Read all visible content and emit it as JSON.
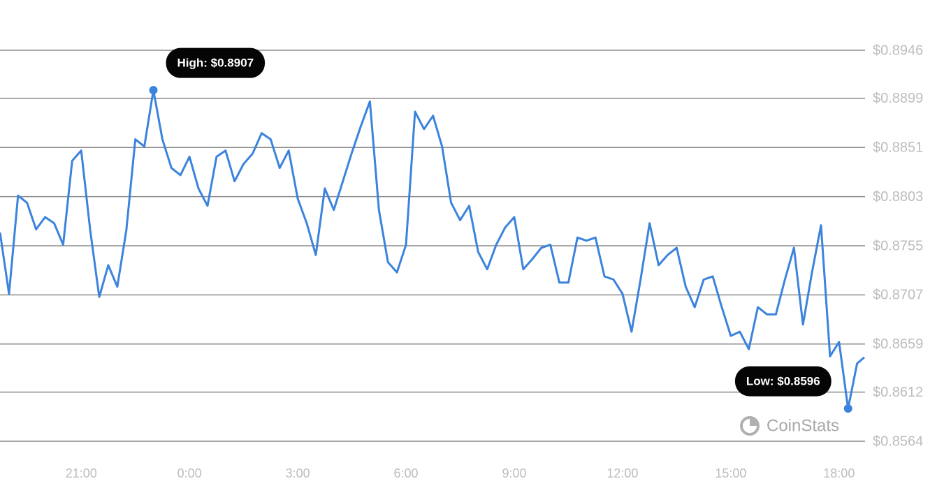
{
  "chart_data": {
    "type": "line",
    "watermark": "CoinStats",
    "high_label": "High: $0.8907",
    "low_label": "Low: $0.8596",
    "color": "#3b83dd",
    "grid": true,
    "xlim": [
      18.75,
      42.72
    ],
    "ylim": [
      0.8564,
      0.8946
    ],
    "xticks": [
      {
        "value": 21,
        "label": "21:00"
      },
      {
        "value": 24,
        "label": "0:00"
      },
      {
        "value": 27,
        "label": "3:00"
      },
      {
        "value": 30,
        "label": "6:00"
      },
      {
        "value": 33,
        "label": "9:00"
      },
      {
        "value": 36,
        "label": "12:00"
      },
      {
        "value": 39,
        "label": "15:00"
      },
      {
        "value": 42,
        "label": "18:00"
      }
    ],
    "yticks": [
      {
        "value": 0.8564,
        "label": "$0.8564"
      },
      {
        "value": 0.8612,
        "label": "$0.8612"
      },
      {
        "value": 0.8659,
        "label": "$0.8659"
      },
      {
        "value": 0.8707,
        "label": "$0.8707"
      },
      {
        "value": 0.8755,
        "label": "$0.8755"
      },
      {
        "value": 0.8803,
        "label": "$0.8803"
      },
      {
        "value": 0.8851,
        "label": "$0.8851"
      },
      {
        "value": 0.8899,
        "label": "$0.8899"
      },
      {
        "value": 0.8946,
        "label": "$0.8946"
      }
    ],
    "x": [
      18.75,
      19,
      19.25,
      19.5,
      19.75,
      20,
      20.25,
      20.5,
      20.75,
      21,
      21.25,
      21.5,
      21.75,
      22,
      22.25,
      22.5,
      22.75,
      23,
      23.25,
      23.5,
      23.75,
      24,
      24.25,
      24.5,
      24.75,
      25,
      25.25,
      25.5,
      25.75,
      26,
      26.25,
      26.5,
      26.75,
      27,
      27.25,
      27.5,
      27.75,
      28,
      28.25,
      28.5,
      28.75,
      29,
      29.25,
      29.5,
      29.75,
      30,
      30.25,
      30.5,
      30.75,
      31,
      31.25,
      31.5,
      31.75,
      32,
      32.25,
      32.5,
      32.75,
      33,
      33.25,
      33.5,
      33.75,
      34,
      34.25,
      34.5,
      34.75,
      35,
      35.25,
      35.5,
      35.75,
      36,
      36.25,
      36.5,
      36.75,
      37,
      37.25,
      37.5,
      37.75,
      38,
      38.25,
      38.5,
      38.75,
      39,
      39.25,
      39.5,
      39.75,
      40,
      40.25,
      40.5,
      40.75,
      41,
      41.25,
      41.5,
      41.75,
      42,
      42.25,
      42.5,
      42.7
    ],
    "values": [
      0.8768,
      0.8708,
      0.8804,
      0.8797,
      0.8771,
      0.8783,
      0.8777,
      0.8756,
      0.8838,
      0.8848,
      0.877,
      0.8705,
      0.8736,
      0.8715,
      0.877,
      0.8859,
      0.8852,
      0.8907,
      0.8859,
      0.8831,
      0.8824,
      0.8842,
      0.8811,
      0.8794,
      0.8842,
      0.8848,
      0.8818,
      0.8835,
      0.8845,
      0.8865,
      0.8859,
      0.8831,
      0.8848,
      0.8801,
      0.8777,
      0.8746,
      0.8811,
      0.879,
      0.8818,
      0.8846,
      0.8872,
      0.8896,
      0.879,
      0.8739,
      0.8729,
      0.8756,
      0.8886,
      0.8869,
      0.8882,
      0.8852,
      0.8797,
      0.878,
      0.8794,
      0.8749,
      0.8732,
      0.8756,
      0.8773,
      0.8783,
      0.8732,
      0.8742,
      0.8753,
      0.8756,
      0.8719,
      0.8719,
      0.8763,
      0.876,
      0.8763,
      0.8725,
      0.8722,
      0.8708,
      0.8671,
      0.8722,
      0.8777,
      0.8736,
      0.8746,
      0.8753,
      0.8715,
      0.8695,
      0.8722,
      0.8725,
      0.8695,
      0.8667,
      0.8671,
      0.8654,
      0.8695,
      0.8688,
      0.8688,
      0.8722,
      0.8753,
      0.8678,
      0.8729,
      0.8775,
      0.8647,
      0.8661,
      0.8596,
      0.864,
      0.8646
    ]
  }
}
